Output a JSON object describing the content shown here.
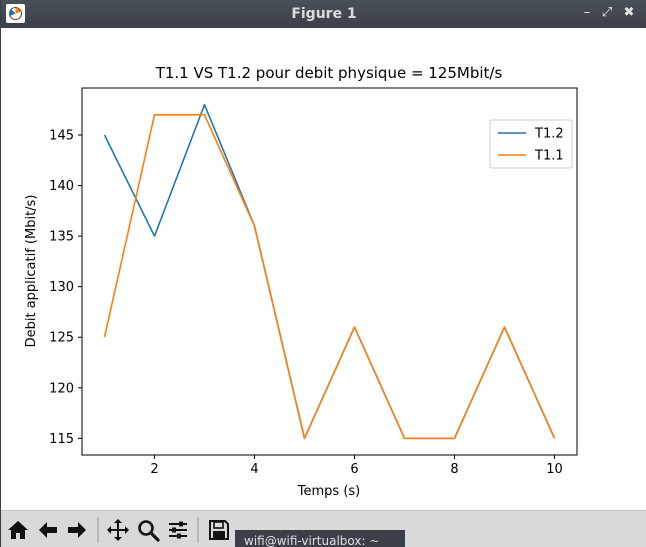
{
  "window": {
    "title": "Figure 1",
    "controls": {
      "minimize": "–",
      "restore": "⤢",
      "close": "✖"
    }
  },
  "toolbar": {
    "buttons": [
      "home-icon",
      "back-arrow-icon",
      "forward-arrow-icon",
      "pan-icon",
      "zoom-icon",
      "subplots-configure-icon",
      "save-icon"
    ]
  },
  "taskbar": {
    "label": "wifi@wifi-virtualbox: ~"
  },
  "chart_data": {
    "type": "line",
    "title": "T1.1 VS T1.2 pour debit physique = 125Mbit/s",
    "xlabel": "Temps (s)",
    "ylabel": "Debit applicatif (Mbit/s)",
    "x": [
      1,
      2,
      3,
      4,
      5,
      6,
      7,
      8,
      9,
      10
    ],
    "xlim": [
      0.55,
      10.45
    ],
    "ylim": [
      113.35,
      149.65
    ],
    "xticks": [
      2,
      4,
      6,
      8,
      10
    ],
    "yticks": [
      115,
      120,
      125,
      130,
      135,
      140,
      145
    ],
    "grid": false,
    "legend_position": "top-right",
    "series": [
      {
        "name": "T1.2",
        "color": "#1f77b4",
        "values": [
          145,
          135,
          148,
          136,
          115,
          126,
          115,
          115,
          126,
          115
        ]
      },
      {
        "name": "T1.1",
        "color": "#ff7f0e",
        "values": [
          125,
          147,
          147,
          136,
          115,
          126,
          115,
          115,
          126,
          115
        ]
      }
    ]
  }
}
